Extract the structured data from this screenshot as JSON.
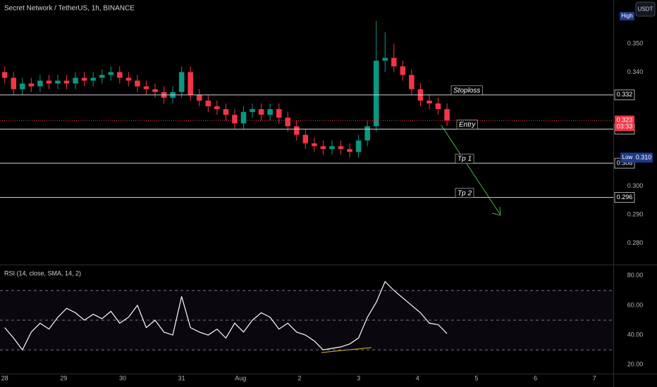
{
  "header": {
    "title": "Secret Network / TetherUS, 1h, BINANCE",
    "currency_button": "USDT"
  },
  "chart_data": [
    {
      "type": "candlestick",
      "x": [
        0,
        0.15,
        0.3,
        0.45,
        0.6,
        0.75,
        0.9,
        1.05,
        1.2,
        1.35,
        1.5,
        1.65,
        1.8,
        1.95,
        2.1,
        2.25,
        2.4,
        2.55,
        2.7,
        2.85,
        3.0,
        3.15,
        3.3,
        3.45,
        3.6,
        3.75,
        3.9,
        4.05,
        4.2,
        4.35,
        4.5,
        4.65,
        4.8,
        4.95,
        5.1,
        5.25,
        5.4,
        5.55,
        5.7,
        5.85,
        6.0,
        6.15,
        6.3,
        6.45,
        6.6,
        6.75,
        6.9,
        7.05,
        7.2,
        7.35,
        7.5
      ],
      "open": [
        0.34,
        0.338,
        0.334,
        0.336,
        0.335,
        0.337,
        0.336,
        0.337,
        0.336,
        0.338,
        0.337,
        0.338,
        0.339,
        0.34,
        0.338,
        0.337,
        0.335,
        0.334,
        0.333,
        0.331,
        0.333,
        0.34,
        0.332,
        0.33,
        0.328,
        0.327,
        0.325,
        0.322,
        0.326,
        0.327,
        0.325,
        0.327,
        0.324,
        0.321,
        0.318,
        0.315,
        0.314,
        0.313,
        0.314,
        0.313,
        0.312,
        0.316,
        0.321,
        0.344,
        0.345,
        0.342,
        0.339,
        0.334,
        0.33,
        0.329,
        0.327
      ],
      "high": [
        0.342,
        0.34,
        0.338,
        0.338,
        0.339,
        0.339,
        0.339,
        0.339,
        0.34,
        0.34,
        0.34,
        0.341,
        0.342,
        0.342,
        0.34,
        0.339,
        0.337,
        0.336,
        0.335,
        0.335,
        0.342,
        0.342,
        0.334,
        0.332,
        0.33,
        0.329,
        0.327,
        0.328,
        0.329,
        0.329,
        0.329,
        0.329,
        0.326,
        0.323,
        0.32,
        0.317,
        0.316,
        0.316,
        0.316,
        0.315,
        0.318,
        0.323,
        0.358,
        0.354,
        0.35,
        0.344,
        0.341,
        0.336,
        0.332,
        0.331,
        0.329
      ],
      "low": [
        0.336,
        0.332,
        0.332,
        0.333,
        0.333,
        0.334,
        0.334,
        0.334,
        0.334,
        0.335,
        0.335,
        0.336,
        0.337,
        0.336,
        0.335,
        0.333,
        0.332,
        0.331,
        0.329,
        0.329,
        0.331,
        0.33,
        0.328,
        0.326,
        0.325,
        0.323,
        0.32,
        0.32,
        0.324,
        0.323,
        0.323,
        0.322,
        0.319,
        0.316,
        0.313,
        0.312,
        0.311,
        0.311,
        0.311,
        0.31,
        0.31,
        0.314,
        0.319,
        0.34,
        0.34,
        0.337,
        0.332,
        0.328,
        0.327,
        0.325,
        0.321
      ],
      "close": [
        0.338,
        0.334,
        0.336,
        0.335,
        0.337,
        0.336,
        0.337,
        0.336,
        0.338,
        0.337,
        0.338,
        0.339,
        0.34,
        0.338,
        0.337,
        0.335,
        0.334,
        0.333,
        0.331,
        0.333,
        0.34,
        0.332,
        0.33,
        0.328,
        0.327,
        0.325,
        0.322,
        0.326,
        0.327,
        0.325,
        0.327,
        0.324,
        0.321,
        0.318,
        0.315,
        0.314,
        0.313,
        0.314,
        0.313,
        0.312,
        0.316,
        0.321,
        0.344,
        0.345,
        0.342,
        0.339,
        0.334,
        0.33,
        0.329,
        0.327,
        0.323
      ],
      "up_color": "#089981",
      "down_color": "#f23645",
      "xlim": [
        -0.08,
        10.32
      ],
      "xticks": [
        {
          "value": 0,
          "label": "28"
        },
        {
          "value": 1,
          "label": "29"
        },
        {
          "value": 2,
          "label": "30"
        },
        {
          "value": 3,
          "label": "31"
        },
        {
          "value": 4,
          "label": "Aug"
        },
        {
          "value": 5,
          "label": "2"
        },
        {
          "value": 6,
          "label": "3"
        },
        {
          "value": 7,
          "label": "4"
        },
        {
          "value": 8,
          "label": "5"
        },
        {
          "value": 9,
          "label": "6"
        },
        {
          "value": 10,
          "label": "7"
        }
      ],
      "ylim": [
        0.2727,
        0.3653
      ],
      "yticks": [
        {
          "value": 0.35,
          "label": "0.350"
        },
        {
          "value": 0.34,
          "label": "0.340"
        },
        {
          "value": 0.3,
          "label": "0.300"
        },
        {
          "value": 0.29,
          "label": "0.290"
        },
        {
          "value": 0.28,
          "label": "0.280"
        }
      ],
      "levels": [
        {
          "name": "Stoploss",
          "value": 0.332,
          "label": "0.332"
        },
        {
          "name": "Entry",
          "value": 0.32,
          "label": "0.320"
        },
        {
          "name": "Tp 1",
          "value": 0.308,
          "label": "0.308"
        },
        {
          "name": "Tp 2",
          "value": 0.296,
          "label": "0.296"
        }
      ],
      "last_price": {
        "value": 0.323,
        "label": "0.323",
        "countdown": "03:33"
      },
      "high_marker": "High",
      "low_marker": {
        "name": "Low",
        "value": 0.31,
        "label": "0.310"
      }
    },
    {
      "type": "line",
      "title": "RSI (14, close, SMA, 14, 2)",
      "x": [
        0,
        0.15,
        0.3,
        0.45,
        0.6,
        0.75,
        0.9,
        1.05,
        1.2,
        1.35,
        1.5,
        1.65,
        1.8,
        1.95,
        2.1,
        2.25,
        2.4,
        2.55,
        2.7,
        2.85,
        3.0,
        3.15,
        3.3,
        3.45,
        3.6,
        3.75,
        3.9,
        4.05,
        4.2,
        4.35,
        4.5,
        4.65,
        4.8,
        4.95,
        5.1,
        5.25,
        5.4,
        5.55,
        5.7,
        5.85,
        6.0,
        6.15,
        6.3,
        6.45,
        6.6,
        6.75,
        6.9,
        7.05,
        7.2,
        7.35,
        7.5
      ],
      "values": [
        45,
        38,
        30,
        42,
        48,
        44,
        52,
        58,
        55,
        50,
        54,
        51,
        56,
        48,
        52,
        60,
        45,
        50,
        42,
        40,
        66,
        45,
        42,
        40,
        44,
        38,
        48,
        42,
        50,
        55,
        52,
        44,
        48,
        42,
        40,
        36,
        30,
        31,
        32,
        34,
        38,
        52,
        62,
        76,
        70,
        65,
        60,
        55,
        48,
        47,
        41
      ],
      "color": "#ffffff",
      "ylim": [
        14,
        87
      ],
      "yticks": [
        {
          "value": 80,
          "label": "80.00"
        },
        {
          "value": 60,
          "label": "60.00"
        },
        {
          "value": 40,
          "label": "40.00"
        },
        {
          "value": 20,
          "label": "20.00"
        }
      ],
      "bands": [
        30,
        50,
        70
      ]
    }
  ]
}
